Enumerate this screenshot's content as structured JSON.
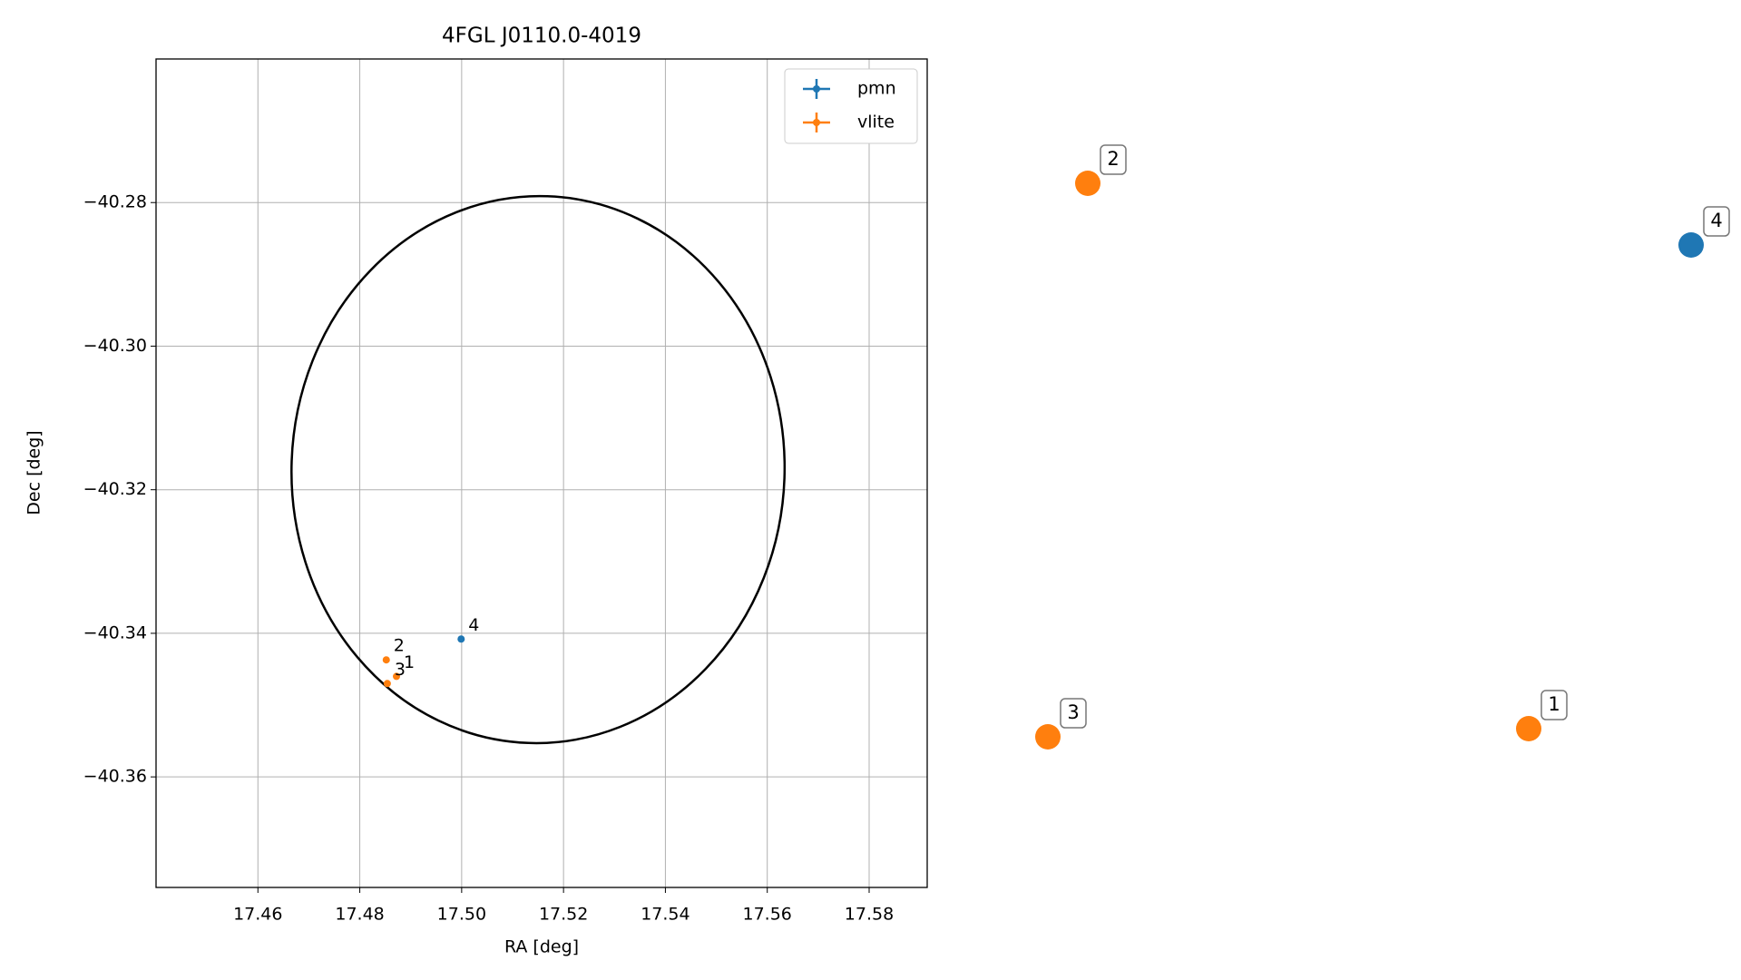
{
  "chart_data": {
    "type": "scatter",
    "title": "4FGL J0110.0-4019",
    "x_label": "RA [deg]",
    "y_label": "Dec [deg]",
    "xlim": [
      17.44,
      17.5914
    ],
    "ylim": [
      -40.3754,
      -40.26
    ],
    "xticks": [
      17.46,
      17.48,
      {
        "value": 17.5,
        "label": "17.50"
      },
      17.52,
      17.54,
      17.56,
      17.58
    ],
    "yticks": [
      {
        "value": -40.28,
        "label": "−40.28"
      },
      {
        "value": -40.3,
        "label": "−40.30"
      },
      {
        "value": -40.32,
        "label": "−40.32"
      },
      {
        "value": -40.34,
        "label": "−40.34"
      },
      {
        "value": -40.36,
        "label": "−40.36"
      }
    ],
    "grid": true,
    "legend": "upper right",
    "ellipse": {
      "color": "#000000",
      "center": [
        17.515,
        -40.3172
      ],
      "semi_axes": [
        0.0484,
        0.0381
      ],
      "angle": 2
    },
    "series": [
      {
        "name": "pmn",
        "color": "#1f77b4",
        "x": [
          17.4999
        ],
        "y": [
          -40.3408
        ],
        "labels": [
          "4"
        ]
      },
      {
        "name": "vlite",
        "color": "#ff7f0e",
        "x": [
          17.4872,
          17.4852,
          17.4854
        ],
        "y": [
          -40.346,
          -40.3437,
          -40.347
        ],
        "labels": [
          "1",
          "2",
          "3"
        ]
      }
    ]
  }
}
